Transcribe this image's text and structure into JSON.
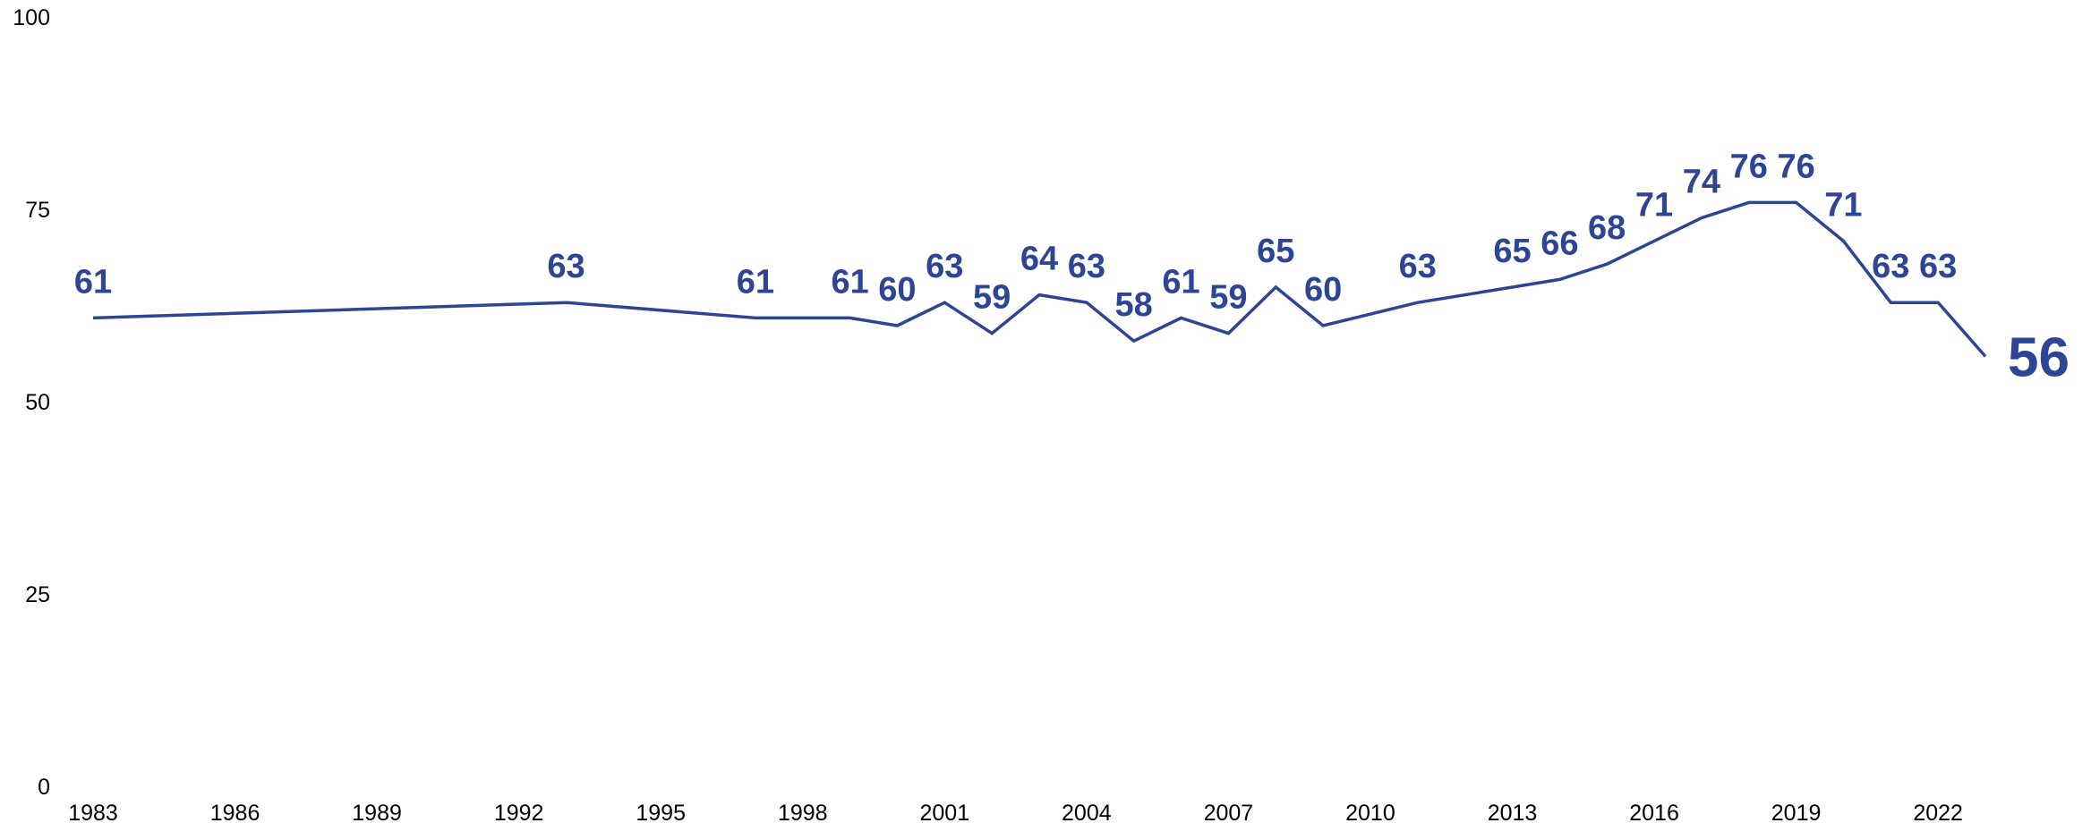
{
  "chart_data": {
    "type": "line",
    "title": "",
    "xlabel": "",
    "ylabel": "",
    "ylim": [
      0,
      100
    ],
    "xlim": [
      1983,
      2023
    ],
    "yticks": [
      0,
      25,
      50,
      75,
      100
    ],
    "xticks": [
      1983,
      1986,
      1989,
      1992,
      1995,
      1998,
      2001,
      2004,
      2007,
      2010,
      2013,
      2016,
      2019,
      2022
    ],
    "grid": false,
    "legend": "none",
    "color": "#2e4495",
    "series": [
      {
        "x": [
          1983,
          1993,
          1997,
          1999,
          2000,
          2001,
          2002,
          2003,
          2004,
          2005,
          2006,
          2007,
          2008,
          2009,
          2011,
          2013,
          2014,
          2015,
          2016,
          2017,
          2018,
          2019,
          2020,
          2021,
          2022,
          2023
        ],
        "values": [
          61,
          63,
          61,
          61,
          60,
          63,
          59,
          64,
          63,
          58,
          61,
          59,
          65,
          60,
          63,
          65,
          66,
          68,
          71,
          74,
          76,
          76,
          71,
          63,
          63,
          56
        ]
      }
    ]
  }
}
